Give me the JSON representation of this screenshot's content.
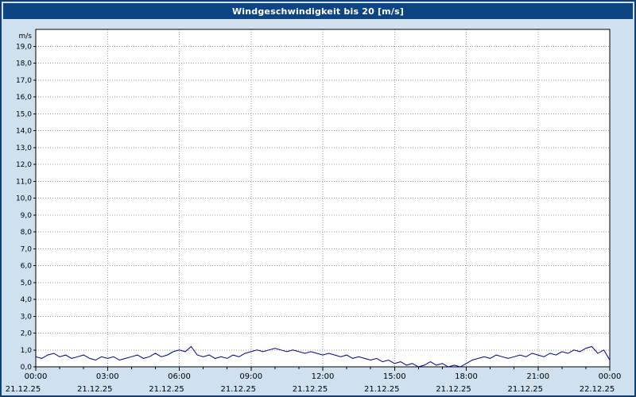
{
  "header": {
    "title": "Windgeschwindigkeit bis 20 [m/s]"
  },
  "colors": {
    "background": "#cfe0ef",
    "titlebar": "#0d4584",
    "window_border": "#0d3f78",
    "plot_background": "#ffffff",
    "plot_border": "#000000",
    "gridline": "#9a9a9a",
    "line_color": "#00008f"
  },
  "chart_data": {
    "type": "line",
    "title": "Windgeschwindigkeit bis 20 [m/s]",
    "ylabel_unit": "m/s",
    "ylim": [
      0,
      20
    ],
    "ytick_step": 1.0,
    "yticks": [
      "0,0",
      "1,0",
      "2,0",
      "3,0",
      "4,0",
      "5,0",
      "6,0",
      "7,0",
      "8,0",
      "9,0",
      "10,0",
      "11,0",
      "12,0",
      "13,0",
      "14,0",
      "15,0",
      "16,0",
      "17,0",
      "18,0",
      "19,0"
    ],
    "xlim_hours": [
      0,
      24
    ],
    "grid": "dotted",
    "legend": "none",
    "xticks": [
      {
        "hour": 0,
        "time": "00:00",
        "date": "21.12.25"
      },
      {
        "hour": 3,
        "time": "03:00",
        "date": "21.12.25"
      },
      {
        "hour": 6,
        "time": "06:00",
        "date": "21.12.25"
      },
      {
        "hour": 9,
        "time": "09:00",
        "date": "21.12.25"
      },
      {
        "hour": 12,
        "time": "12:00",
        "date": "21.12.25"
      },
      {
        "hour": 15,
        "time": "15:00",
        "date": "21.12.25"
      },
      {
        "hour": 18,
        "time": "18:00",
        "date": "21.12.25"
      },
      {
        "hour": 21,
        "time": "21:00",
        "date": "21.12.25"
      },
      {
        "hour": 24,
        "time": "00:00",
        "date": "22.12.25"
      }
    ],
    "series_name": "Windgeschwindigkeit",
    "x_step_hours": 0.25,
    "values": [
      0.6,
      0.5,
      0.7,
      0.8,
      0.6,
      0.7,
      0.5,
      0.6,
      0.7,
      0.5,
      0.4,
      0.6,
      0.5,
      0.6,
      0.4,
      0.5,
      0.6,
      0.7,
      0.5,
      0.6,
      0.8,
      0.6,
      0.7,
      0.9,
      1.0,
      0.9,
      1.2,
      0.7,
      0.6,
      0.7,
      0.5,
      0.6,
      0.5,
      0.7,
      0.6,
      0.8,
      0.9,
      1.0,
      0.9,
      1.0,
      1.1,
      1.0,
      0.9,
      1.0,
      0.9,
      0.8,
      0.9,
      0.8,
      0.7,
      0.8,
      0.7,
      0.6,
      0.7,
      0.5,
      0.6,
      0.5,
      0.4,
      0.5,
      0.3,
      0.4,
      0.2,
      0.3,
      0.1,
      0.2,
      0.0,
      0.1,
      0.3,
      0.1,
      0.2,
      0.0,
      0.1,
      0.0,
      0.2,
      0.4,
      0.5,
      0.6,
      0.5,
      0.7,
      0.6,
      0.5,
      0.6,
      0.7,
      0.6,
      0.8,
      0.7,
      0.6,
      0.8,
      0.7,
      0.9,
      0.8,
      1.0,
      0.9,
      1.1,
      1.2,
      0.8,
      1.0,
      0.4
    ]
  }
}
